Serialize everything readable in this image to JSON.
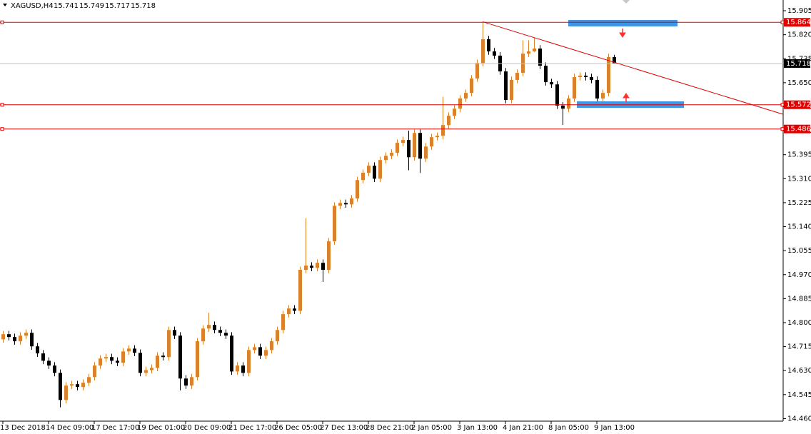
{
  "header": {
    "symbol": "XAGUSD,H4",
    "open": 15.741,
    "high": 15.749,
    "low": 15.717,
    "close": 15.718
  },
  "chart_data": {
    "type": "candlestick",
    "categories": [
      "13 Dec 2018",
      null,
      null,
      null,
      null,
      null,
      null,
      null,
      "14 Dec 09:00",
      null,
      null,
      null,
      null,
      null,
      null,
      null,
      "17 Dec 17:00",
      null,
      null,
      null,
      null,
      null,
      null,
      null,
      "19 Dec 01:00",
      null,
      null,
      null,
      null,
      null,
      null,
      null,
      "20 Dec 09:00",
      null,
      null,
      null,
      null,
      null,
      null,
      null,
      "21 Dec 17:00",
      null,
      null,
      null,
      null,
      null,
      null,
      null,
      "26 Dec 05:00",
      null,
      null,
      null,
      null,
      null,
      null,
      null,
      "27 Dec 13:00",
      null,
      null,
      null,
      null,
      null,
      null,
      null,
      "28 Dec 21:00",
      null,
      null,
      null,
      null,
      null,
      null,
      null,
      "2 Jan 05:00",
      null,
      null,
      null,
      null,
      null,
      null,
      null,
      "3 Jan 13:00",
      null,
      null,
      null,
      null,
      null,
      null,
      null,
      "4 Jan 21:00",
      null,
      null,
      null,
      null,
      null,
      null,
      null,
      "8 Jan 05:00",
      null,
      null,
      null,
      null,
      null,
      null,
      null,
      "9 Jan 13:00",
      null,
      null,
      null
    ],
    "open": [
      14.741,
      14.759,
      14.749,
      14.734,
      14.754,
      14.764,
      14.716,
      14.691,
      14.665,
      14.648,
      14.622,
      14.526,
      14.577,
      14.582,
      14.572,
      14.587,
      14.607,
      14.648,
      14.673,
      14.678,
      14.665,
      14.658,
      14.698,
      14.708,
      14.693,
      14.622,
      14.632,
      14.64,
      14.683,
      14.678,
      14.774,
      14.754,
      14.602,
      14.577,
      14.607,
      14.734,
      14.779,
      14.792,
      14.774,
      14.764,
      14.754,
      14.627,
      14.648,
      14.622,
      14.703,
      14.713,
      14.683,
      14.703,
      14.734,
      14.774,
      14.83,
      14.85,
      14.842,
      14.987,
      15.002,
      14.994,
      15.012,
      14.987,
      15.088,
      15.214,
      15.224,
      15.219,
      15.24,
      15.305,
      15.331,
      15.356,
      15.31,
      15.376,
      15.391,
      15.402,
      15.437,
      15.447,
      15.386,
      15.472,
      15.381,
      15.424,
      15.457,
      15.462,
      15.5,
      15.533,
      15.558,
      15.594,
      15.614,
      15.665,
      15.72,
      15.804,
      15.761,
      15.746,
      15.69,
      15.589,
      15.66,
      15.685,
      15.753,
      15.761,
      15.771,
      15.71,
      15.652,
      15.644,
      15.569,
      15.558,
      15.594,
      15.67,
      15.675,
      15.67,
      15.66,
      15.594,
      15.614,
      15.741
    ],
    "high": [
      14.771,
      14.771,
      14.761,
      14.766,
      14.776,
      14.776,
      14.728,
      14.703,
      14.677,
      14.66,
      14.634,
      14.589,
      14.594,
      14.594,
      14.599,
      14.619,
      14.66,
      14.685,
      14.69,
      14.69,
      14.677,
      14.71,
      14.72,
      14.72,
      14.705,
      14.644,
      14.652,
      14.695,
      14.695,
      14.786,
      14.786,
      14.766,
      14.614,
      14.619,
      14.746,
      14.791,
      14.835,
      14.804,
      14.786,
      14.776,
      14.766,
      14.66,
      14.66,
      14.715,
      14.725,
      14.725,
      14.715,
      14.746,
      14.786,
      14.842,
      14.862,
      14.862,
      14.999,
      15.17,
      15.014,
      15.024,
      15.024,
      15.1,
      15.226,
      15.236,
      15.236,
      15.252,
      15.317,
      15.343,
      15.368,
      15.368,
      15.388,
      15.403,
      15.414,
      15.449,
      15.459,
      15.48,
      15.484,
      15.484,
      15.436,
      15.469,
      15.474,
      15.6,
      15.545,
      15.57,
      15.606,
      15.626,
      15.677,
      15.732,
      15.866,
      15.816,
      15.773,
      15.758,
      15.702,
      15.672,
      15.697,
      15.8,
      15.8,
      15.81,
      15.783,
      15.722,
      15.664,
      15.656,
      15.581,
      15.606,
      15.682,
      15.687,
      15.687,
      15.682,
      15.672,
      15.626,
      15.753,
      15.749
    ],
    "low": [
      14.729,
      14.737,
      14.722,
      14.722,
      14.742,
      14.704,
      14.679,
      14.653,
      14.636,
      14.61,
      14.5,
      14.514,
      14.565,
      14.56,
      14.56,
      14.575,
      14.595,
      14.636,
      14.661,
      14.653,
      14.646,
      14.646,
      14.686,
      14.681,
      14.61,
      14.61,
      14.62,
      14.628,
      14.666,
      14.666,
      14.742,
      14.56,
      14.565,
      14.565,
      14.595,
      14.722,
      14.767,
      14.762,
      14.752,
      14.742,
      14.615,
      14.615,
      14.61,
      14.61,
      14.691,
      14.671,
      14.671,
      14.691,
      14.722,
      14.762,
      14.818,
      14.83,
      14.83,
      14.975,
      14.982,
      14.982,
      14.944,
      14.975,
      15.076,
      15.202,
      15.207,
      15.207,
      15.228,
      15.293,
      15.319,
      15.298,
      15.298,
      15.364,
      15.379,
      15.39,
      15.425,
      15.34,
      15.374,
      15.33,
      15.369,
      15.412,
      15.445,
      15.45,
      15.488,
      15.521,
      15.546,
      15.582,
      15.602,
      15.653,
      15.708,
      15.749,
      15.734,
      15.678,
      15.577,
      15.577,
      15.648,
      15.673,
      15.741,
      15.759,
      15.698,
      15.64,
      15.632,
      15.557,
      15.5,
      15.546,
      15.582,
      15.658,
      15.658,
      15.648,
      15.582,
      15.582,
      15.602,
      15.717
    ],
    "close": [
      14.759,
      14.749,
      14.734,
      14.754,
      14.764,
      14.716,
      14.691,
      14.665,
      14.648,
      14.622,
      14.526,
      14.577,
      14.582,
      14.572,
      14.587,
      14.607,
      14.648,
      14.673,
      14.678,
      14.665,
      14.658,
      14.698,
      14.708,
      14.693,
      14.622,
      14.632,
      14.64,
      14.683,
      14.678,
      14.774,
      14.754,
      14.602,
      14.577,
      14.607,
      14.734,
      14.779,
      14.792,
      14.774,
      14.764,
      14.754,
      14.627,
      14.648,
      14.622,
      14.703,
      14.713,
      14.683,
      14.703,
      14.734,
      14.774,
      14.83,
      14.85,
      14.842,
      14.987,
      15.002,
      14.994,
      15.012,
      14.987,
      15.088,
      15.214,
      15.224,
      15.219,
      15.24,
      15.305,
      15.331,
      15.356,
      15.31,
      15.376,
      15.391,
      15.402,
      15.437,
      15.447,
      15.386,
      15.472,
      15.381,
      15.424,
      15.457,
      15.462,
      15.5,
      15.533,
      15.558,
      15.594,
      15.614,
      15.665,
      15.72,
      15.804,
      15.761,
      15.746,
      15.69,
      15.589,
      15.66,
      15.685,
      15.753,
      15.761,
      15.771,
      15.71,
      15.652,
      15.644,
      15.569,
      15.558,
      15.594,
      15.67,
      15.675,
      15.67,
      15.66,
      15.594,
      15.614,
      15.741,
      15.718
    ],
    "up_color": "#d9822b",
    "down_color": "#000000",
    "ylim": [
      14.451,
      15.943
    ],
    "yticks": [
      15.905,
      {
        "value": 15.82,
        "label": "15.820"
      },
      15.735,
      {
        "value": 15.65,
        "label": "15.650"
      },
      15.565,
      {
        "value": 15.48,
        "label": "15.480"
      },
      15.395,
      {
        "value": 15.31,
        "label": "15.310"
      },
      15.225,
      {
        "value": 15.14,
        "label": "15.140"
      },
      15.055,
      {
        "value": 14.97,
        "label": "14.970"
      },
      14.885,
      {
        "value": 14.8,
        "label": "14.800"
      },
      14.715,
      {
        "value": 14.63,
        "label": "14.630"
      },
      14.545,
      {
        "value": 14.46,
        "label": "14.460"
      }
    ],
    "levels": [
      {
        "value": 15.864,
        "color": "#e00000"
      },
      {
        "value": 15.572,
        "color": "#e00000"
      },
      {
        "value": 15.486,
        "color": "#e00000"
      }
    ],
    "current_price": 15.718,
    "trendline_end": 15.538,
    "grid": false
  }
}
